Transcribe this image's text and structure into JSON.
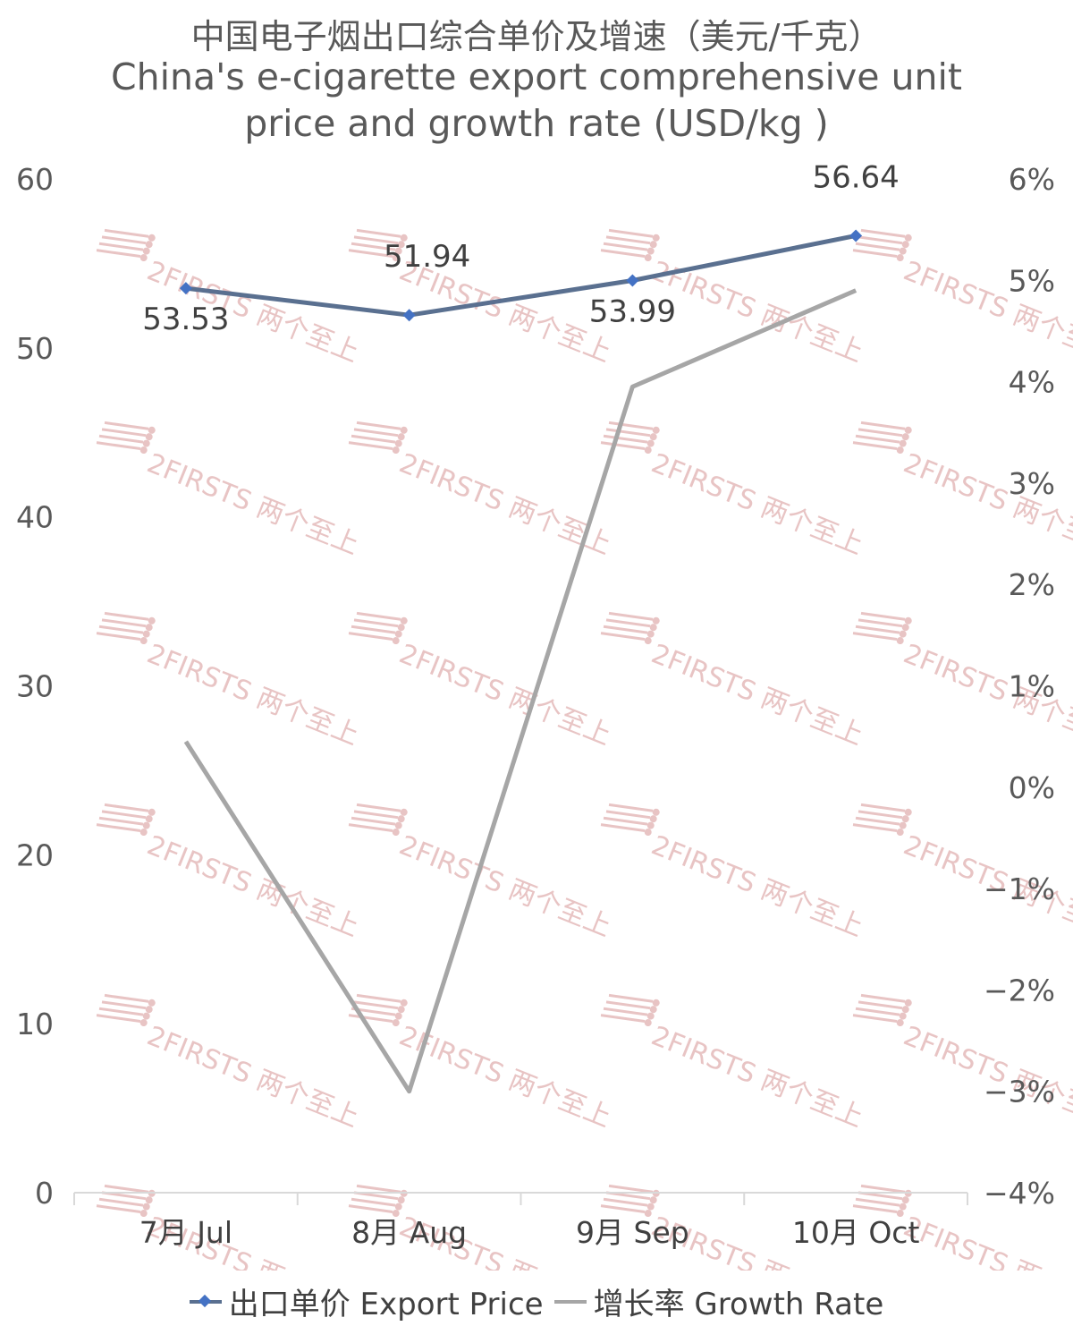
{
  "title": {
    "line1": "中国电子烟出口综合单价及增速（美元/千克）",
    "line2": "China's e-cigarette export comprehensive unit",
    "line3": "price and growth rate (USD/kg )"
  },
  "watermark": "2FIRSTS 两个至上",
  "legend": {
    "price": "出口单价 Export Price",
    "growth": "增长率 Growth Rate"
  },
  "colors": {
    "price_line": "#5a7090",
    "price_marker": "#4472c4",
    "growth_line": "#a6a6a6",
    "axis": "#d9d9d9",
    "watermark": "#e8c4c4"
  },
  "chart_data": {
    "type": "line",
    "categories": [
      "7月 Jul",
      "8月 Aug",
      "9月 Sep",
      "10月 Oct"
    ],
    "series": [
      {
        "name": "出口单价 Export Price",
        "axis": "left",
        "values": [
          53.53,
          51.94,
          53.99,
          56.64
        ],
        "labels": [
          "53.53",
          "51.94",
          "53.99",
          "56.64"
        ]
      },
      {
        "name": "增长率 Growth Rate",
        "axis": "right",
        "values": [
          0.45,
          -3.0,
          3.95,
          4.9
        ]
      }
    ],
    "y_left": {
      "min": 0,
      "max": 60,
      "ticks": [
        "0",
        "10",
        "20",
        "30",
        "40",
        "50",
        "60"
      ]
    },
    "y_right": {
      "min": -4,
      "max": 6,
      "ticks": [
        "−4%",
        "−3%",
        "−2%",
        "−1%",
        "0%",
        "1%",
        "2%",
        "3%",
        "4%",
        "5%",
        "6%"
      ]
    },
    "grid": false,
    "legend_position": "bottom"
  }
}
